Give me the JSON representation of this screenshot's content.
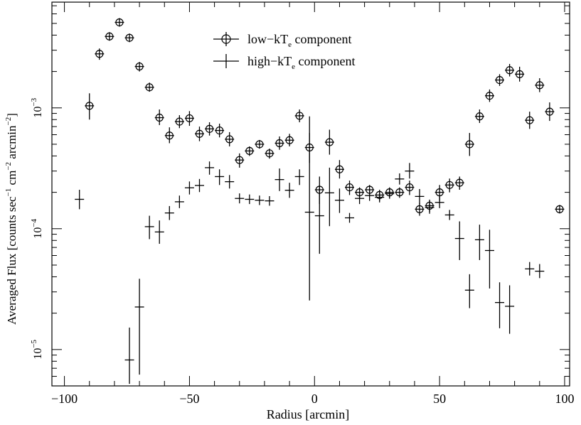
{
  "chart_data": {
    "type": "scatter",
    "xlabel": "Radius [arcmin]",
    "ylabel_main": "Averaged Flux [counts sec",
    "ylabel_parts": [
      "−1",
      " cm",
      "−2",
      " arcmin",
      "−2",
      "]"
    ],
    "xlim": [
      -105,
      102
    ],
    "ylim": [
      5e-06,
      0.0075
    ],
    "yscale": "log",
    "x_ticks": [
      {
        "value": -100,
        "label": "−100"
      },
      {
        "value": -50,
        "label": "−50"
      },
      {
        "value": 0,
        "label": "0"
      },
      {
        "value": 50,
        "label": "50"
      },
      {
        "value": 100,
        "label": "100"
      }
    ],
    "y_ticks": [
      {
        "value": 1e-05,
        "base": "10",
        "exp": "−5"
      },
      {
        "value": 0.0001,
        "base": "10",
        "exp": "−4"
      },
      {
        "value": 0.001,
        "base": "10",
        "exp": "−3"
      }
    ],
    "legend_placement": "top-center",
    "series": [
      {
        "name_prefix": "low−kT",
        "name_sub": "e",
        "name_suffix": " component",
        "marker": "circle-cross",
        "points": [
          {
            "x": -90,
            "y": 0.00104,
            "lo": 0.0008,
            "hi": 0.00132
          },
          {
            "x": -86,
            "y": 0.0028,
            "lo": 0.0025,
            "hi": 0.0031
          },
          {
            "x": -82,
            "y": 0.0039,
            "lo": 0.0036,
            "hi": 0.0042
          },
          {
            "x": -78,
            "y": 0.0051,
            "lo": 0.0048,
            "hi": 0.0054
          },
          {
            "x": -74,
            "y": 0.0038,
            "lo": 0.0035,
            "hi": 0.0041
          },
          {
            "x": -70,
            "y": 0.0022,
            "lo": 0.002,
            "hi": 0.0024
          },
          {
            "x": -66,
            "y": 0.00148,
            "lo": 0.00136,
            "hi": 0.00162
          },
          {
            "x": -62,
            "y": 0.00083,
            "lo": 0.00072,
            "hi": 0.00097
          },
          {
            "x": -58,
            "y": 0.00059,
            "lo": 0.00051,
            "hi": 0.00069
          },
          {
            "x": -54,
            "y": 0.00077,
            "lo": 0.00068,
            "hi": 0.00087
          },
          {
            "x": -50,
            "y": 0.00082,
            "lo": 0.00071,
            "hi": 0.00094
          },
          {
            "x": -46,
            "y": 0.00061,
            "lo": 0.00053,
            "hi": 0.0007
          },
          {
            "x": -42,
            "y": 0.00067,
            "lo": 0.00059,
            "hi": 0.00076
          },
          {
            "x": -38,
            "y": 0.00065,
            "lo": 0.00057,
            "hi": 0.00074
          },
          {
            "x": -34,
            "y": 0.00055,
            "lo": 0.00048,
            "hi": 0.00063
          },
          {
            "x": -30,
            "y": 0.00037,
            "lo": 0.00032,
            "hi": 0.00042
          },
          {
            "x": -26,
            "y": 0.00044,
            "lo": 0.0004,
            "hi": 0.00048
          },
          {
            "x": -22,
            "y": 0.0005,
            "lo": 0.00046,
            "hi": 0.00054
          },
          {
            "x": -18,
            "y": 0.00042,
            "lo": 0.00038,
            "hi": 0.00046
          },
          {
            "x": -14,
            "y": 0.00051,
            "lo": 0.00045,
            "hi": 0.00058
          },
          {
            "x": -10,
            "y": 0.00054,
            "lo": 0.00048,
            "hi": 0.00061
          },
          {
            "x": -6,
            "y": 0.00086,
            "lo": 0.00076,
            "hi": 0.00097
          },
          {
            "x": -2,
            "y": 0.00047,
            "lo": 0.00035,
            "hi": 0.00062
          },
          {
            "x": 2,
            "y": 0.00021,
            "lo": 0.00016,
            "hi": 0.00027
          },
          {
            "x": 6,
            "y": 0.00052,
            "lo": 0.00041,
            "hi": 0.00066
          },
          {
            "x": 10,
            "y": 0.00031,
            "lo": 0.00026,
            "hi": 0.00037
          },
          {
            "x": 14,
            "y": 0.00022,
            "lo": 0.00019,
            "hi": 0.00025
          },
          {
            "x": 18,
            "y": 0.0002,
            "lo": 0.00018,
            "hi": 0.00022
          },
          {
            "x": 22,
            "y": 0.00021,
            "lo": 0.00019,
            "hi": 0.00023
          },
          {
            "x": 26,
            "y": 0.00019,
            "lo": 0.00017,
            "hi": 0.00021
          },
          {
            "x": 30,
            "y": 0.0002,
            "lo": 0.00018,
            "hi": 0.00022
          },
          {
            "x": 34,
            "y": 0.0002,
            "lo": 0.00018,
            "hi": 0.00022
          },
          {
            "x": 38,
            "y": 0.00022,
            "lo": 0.00019,
            "hi": 0.00025
          },
          {
            "x": 42,
            "y": 0.000145,
            "lo": 0.000128,
            "hi": 0.000163
          },
          {
            "x": 46,
            "y": 0.000155,
            "lo": 0.000138,
            "hi": 0.000174
          },
          {
            "x": 50,
            "y": 0.0002,
            "lo": 0.00017,
            "hi": 0.00023
          },
          {
            "x": 54,
            "y": 0.00023,
            "lo": 0.0002,
            "hi": 0.00026
          },
          {
            "x": 58,
            "y": 0.00024,
            "lo": 0.00021,
            "hi": 0.00027
          },
          {
            "x": 62,
            "y": 0.0005,
            "lo": 0.0004,
            "hi": 0.00062
          },
          {
            "x": 66,
            "y": 0.00085,
            "lo": 0.00075,
            "hi": 0.00097
          },
          {
            "x": 70,
            "y": 0.00126,
            "lo": 0.00112,
            "hi": 0.00142
          },
          {
            "x": 74,
            "y": 0.0017,
            "lo": 0.00152,
            "hi": 0.0019
          },
          {
            "x": 78,
            "y": 0.00205,
            "lo": 0.00182,
            "hi": 0.00231
          },
          {
            "x": 82,
            "y": 0.0019,
            "lo": 0.00165,
            "hi": 0.00219
          },
          {
            "x": 86,
            "y": 0.00079,
            "lo": 0.00067,
            "hi": 0.00093
          },
          {
            "x": 90,
            "y": 0.00154,
            "lo": 0.00135,
            "hi": 0.00176
          },
          {
            "x": 94,
            "y": 0.00093,
            "lo": 0.00078,
            "hi": 0.00111
          },
          {
            "x": 98,
            "y": 0.000145,
            "lo": 0.000145,
            "hi": 0.000145
          }
        ]
      },
      {
        "name_prefix": "high−kT",
        "name_sub": "e",
        "name_suffix": " component",
        "marker": "cross",
        "points": [
          {
            "x": -94,
            "y": 0.000175,
            "lo": 0.000145,
            "hi": 0.00021
          },
          {
            "x": -74,
            "y": 8.2e-06,
            "lo": 5.2e-06,
            "hi": 1.52e-05
          },
          {
            "x": -70,
            "y": 2.25e-05,
            "lo": 6.2e-06,
            "hi": 3.85e-05
          },
          {
            "x": -66,
            "y": 0.000104,
            "lo": 8.2e-05,
            "hi": 0.000128
          },
          {
            "x": -62,
            "y": 9.4e-05,
            "lo": 7.5e-05,
            "hi": 0.000117
          },
          {
            "x": -58,
            "y": 0.000135,
            "lo": 0.000118,
            "hi": 0.000154
          },
          {
            "x": -54,
            "y": 0.000167,
            "lo": 0.000148,
            "hi": 0.000188
          },
          {
            "x": -50,
            "y": 0.000218,
            "lo": 0.000192,
            "hi": 0.000246
          },
          {
            "x": -46,
            "y": 0.000228,
            "lo": 0.000201,
            "hi": 0.000258
          },
          {
            "x": -42,
            "y": 0.00032,
            "lo": 0.00028,
            "hi": 0.00036
          },
          {
            "x": -38,
            "y": 0.00027,
            "lo": 0.00023,
            "hi": 0.00031
          },
          {
            "x": -34,
            "y": 0.000245,
            "lo": 0.000215,
            "hi": 0.000278
          },
          {
            "x": -30,
            "y": 0.000178,
            "lo": 0.000162,
            "hi": 0.000196
          },
          {
            "x": -26,
            "y": 0.000175,
            "lo": 0.00016,
            "hi": 0.000192
          },
          {
            "x": -22,
            "y": 0.000172,
            "lo": 0.000157,
            "hi": 0.000188
          },
          {
            "x": -18,
            "y": 0.00017,
            "lo": 0.000155,
            "hi": 0.000186
          },
          {
            "x": -14,
            "y": 0.000255,
            "lo": 0.000205,
            "hi": 0.000315
          },
          {
            "x": -10,
            "y": 0.000208,
            "lo": 0.00018,
            "hi": 0.00024
          },
          {
            "x": -6,
            "y": 0.00027,
            "lo": 0.00023,
            "hi": 0.00031
          },
          {
            "x": -2,
            "y": 0.000137,
            "lo": 2.55e-05,
            "hi": 0.00085
          },
          {
            "x": 2,
            "y": 0.000128,
            "lo": 6.2e-05,
            "hi": 0.000225
          },
          {
            "x": 6,
            "y": 0.000198,
            "lo": 0.000105,
            "hi": 0.00032
          },
          {
            "x": 10,
            "y": 0.000172,
            "lo": 0.000135,
            "hi": 0.000215
          },
          {
            "x": 14,
            "y": 0.000123,
            "lo": 0.000112,
            "hi": 0.000135
          },
          {
            "x": 18,
            "y": 0.000178,
            "lo": 0.00016,
            "hi": 0.000198
          },
          {
            "x": 22,
            "y": 0.000188,
            "lo": 0.00017,
            "hi": 0.000208
          },
          {
            "x": 26,
            "y": 0.000182,
            "lo": 0.000165,
            "hi": 0.000201
          },
          {
            "x": 30,
            "y": 0.000195,
            "lo": 0.000177,
            "hi": 0.000215
          },
          {
            "x": 34,
            "y": 0.000258,
            "lo": 0.000232,
            "hi": 0.000287
          },
          {
            "x": 38,
            "y": 0.0003,
            "lo": 0.00026,
            "hi": 0.00035
          },
          {
            "x": 42,
            "y": 0.000185,
            "lo": 0.00016,
            "hi": 0.000213
          },
          {
            "x": 46,
            "y": 0.00015,
            "lo": 0.000133,
            "hi": 0.00017
          },
          {
            "x": 50,
            "y": 0.000165,
            "lo": 0.000148,
            "hi": 0.000184
          },
          {
            "x": 54,
            "y": 0.00013,
            "lo": 0.000118,
            "hi": 0.000143
          },
          {
            "x": 58,
            "y": 8.3e-05,
            "lo": 5.5e-05,
            "hi": 0.000115
          },
          {
            "x": 62,
            "y": 3.1e-05,
            "lo": 2.2e-05,
            "hi": 4.2e-05
          },
          {
            "x": 66,
            "y": 8.1e-05,
            "lo": 5.5e-05,
            "hi": 0.000108
          },
          {
            "x": 70,
            "y": 6.6e-05,
            "lo": 3.2e-05,
            "hi": 9.8e-05
          },
          {
            "x": 74,
            "y": 2.45e-05,
            "lo": 1.5e-05,
            "hi": 3.6e-05
          },
          {
            "x": 78,
            "y": 2.28e-05,
            "lo": 1.35e-05,
            "hi": 3.4e-05
          },
          {
            "x": 86,
            "y": 4.65e-05,
            "lo": 4.1e-05,
            "hi": 5.3e-05
          },
          {
            "x": 90,
            "y": 4.45e-05,
            "lo": 3.9e-05,
            "hi": 5.1e-05
          }
        ]
      }
    ]
  }
}
